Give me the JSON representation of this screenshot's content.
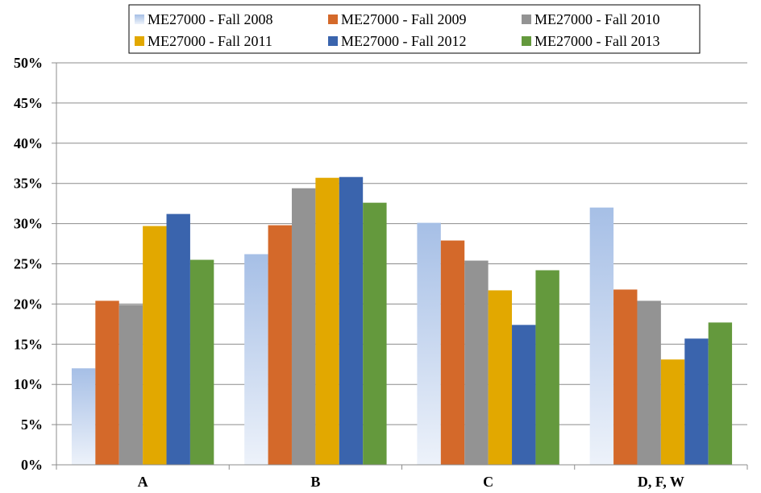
{
  "chart_data": {
    "type": "bar",
    "categories": [
      "A",
      "B",
      "C",
      "D, F, W"
    ],
    "series": [
      {
        "name": "ME27000 - Fall 2008",
        "values": [
          12.0,
          26.2,
          30.1,
          32.0
        ],
        "color": "#a6bfe6",
        "gradient": true
      },
      {
        "name": "ME27000 - Fall 2009",
        "values": [
          20.4,
          29.8,
          27.9,
          21.8
        ],
        "color": "#d4692a"
      },
      {
        "name": "ME27000 - Fall 2010",
        "values": [
          19.9,
          34.4,
          25.4,
          20.4
        ],
        "color": "#939393"
      },
      {
        "name": "ME27000 - Fall 2011",
        "values": [
          29.7,
          35.7,
          21.7,
          13.1
        ],
        "color": "#e2a800"
      },
      {
        "name": "ME27000 - Fall 2012",
        "values": [
          31.2,
          35.8,
          17.4,
          15.7
        ],
        "color": "#3a64ad"
      },
      {
        "name": "ME27000 - Fall 2013",
        "values": [
          25.5,
          32.6,
          24.2,
          17.7
        ],
        "color": "#64993d"
      }
    ],
    "yticks": [
      "0%",
      "5%",
      "10%",
      "15%",
      "20%",
      "25%",
      "30%",
      "35%",
      "40%",
      "45%",
      "50%"
    ],
    "ylim": [
      0,
      50
    ],
    "xlabel": "",
    "ylabel": "",
    "grid": true,
    "legend_position": "top"
  }
}
